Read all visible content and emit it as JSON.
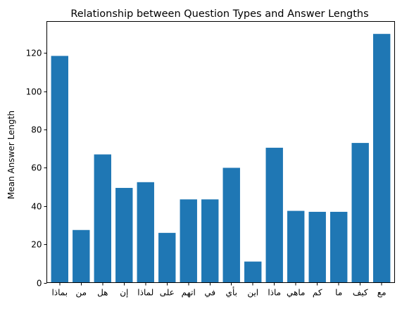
{
  "chart_data": {
    "type": "bar",
    "title": "Relationship between Question Types and Answer Lengths",
    "xlabel": "",
    "ylabel": "Mean Answer Length",
    "categories": [
      "بماذا",
      "من",
      "هل",
      "إن",
      "لماذا",
      "على",
      "اتهم",
      "في",
      "بأي",
      "اين",
      "ماذا",
      "ماهي",
      "كم",
      "ما",
      "كيف",
      "مع"
    ],
    "values": [
      118.5,
      27.5,
      67,
      49.5,
      52.5,
      26,
      43.5,
      43.5,
      60,
      11,
      70.5,
      37.5,
      37,
      37,
      73,
      130
    ],
    "ylim": [
      0,
      136.5
    ],
    "yticks": [
      0,
      20,
      40,
      60,
      80,
      100,
      120
    ],
    "bar_color": "#1f77b4",
    "grid": false,
    "legend": "none"
  }
}
